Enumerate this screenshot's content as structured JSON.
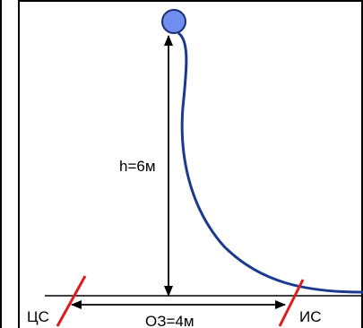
{
  "diagram": {
    "height_label": "h=6м",
    "distance_label": "ОЗ=4м",
    "left_point_label": "ЦС",
    "right_point_label": "ИС",
    "colors": {
      "frame": "#000000",
      "trajectory": "#1a3a8f",
      "ball_fill": "#6f8ef0",
      "ball_stroke": "#1a2f70",
      "marker": "#e01b1b",
      "arrows": "#000000"
    }
  }
}
